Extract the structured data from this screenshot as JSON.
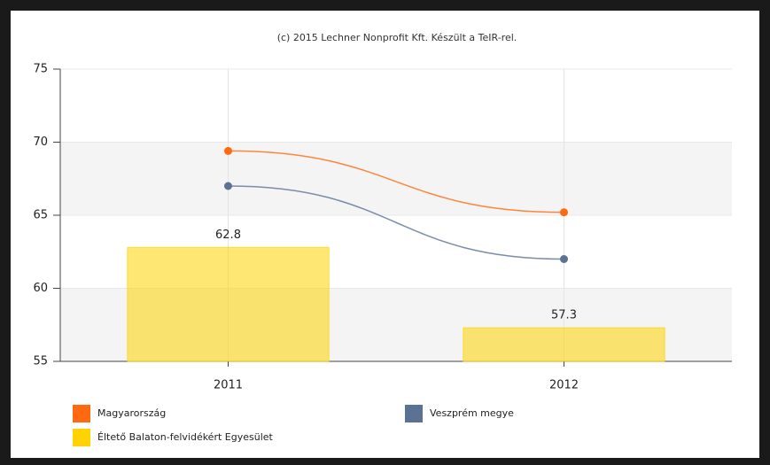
{
  "chart_data": {
    "type": "bar",
    "title": "(c) 2015 Lechner Nonprofit Kft. Készült a TeIR-rel.",
    "categories": [
      "2011",
      "2012"
    ],
    "series": [
      {
        "name": "Magyarország",
        "type": "line",
        "color": "#ff6a10",
        "values": [
          69.4,
          65.2
        ]
      },
      {
        "name": "Veszprém megye",
        "type": "line",
        "color": "#5c7295",
        "values": [
          67.0,
          62.0
        ]
      },
      {
        "name": "Éltető Balaton-felvidékért Egyesület",
        "type": "bar",
        "color": "#ffd300",
        "values": [
          62.8,
          57.3
        ]
      }
    ],
    "ylim": [
      55,
      75
    ],
    "yticks": [
      55,
      60,
      65,
      70,
      75
    ],
    "grid": true,
    "banded": true
  }
}
